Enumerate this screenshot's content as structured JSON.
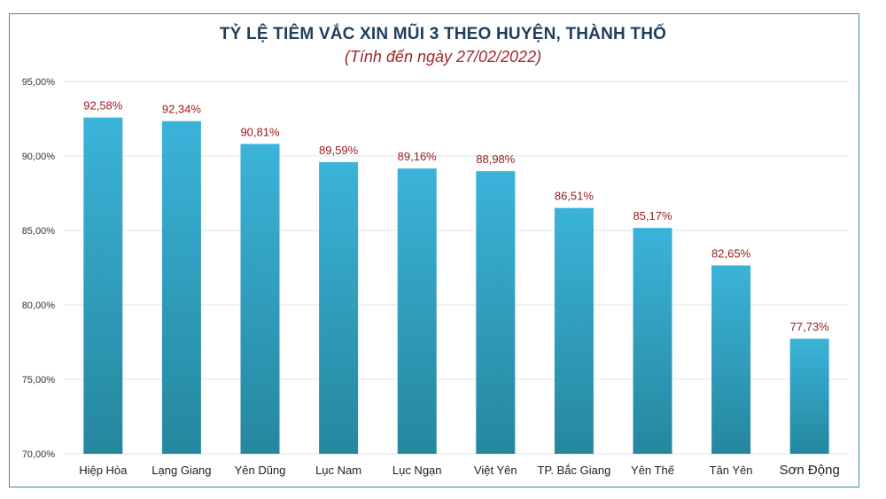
{
  "chart_data": {
    "type": "bar",
    "title": "TỶ LỆ TIÊM VẮC XIN MŨI 3 THEO HUYỆN, THÀNH THỐ",
    "subtitle": "(Tính đến ngày 27/02/2022)",
    "xlabel": "",
    "ylabel": "",
    "ylim": [
      70,
      95
    ],
    "yticks": [
      70,
      75,
      80,
      85,
      90,
      95
    ],
    "ytick_labels": [
      "70,00%",
      "75,00%",
      "80,00%",
      "85,00%",
      "90,00%",
      "95,00%"
    ],
    "grid": true,
    "categories": [
      "Hiệp Hòa",
      "Lạng Giang",
      "Yên Dũng",
      "Lục Nam",
      "Lục Ngạn",
      "Việt Yên",
      "TP. Bắc Giang",
      "Yên Thế",
      "Tân Yên",
      "Sơn Động"
    ],
    "values": [
      92.58,
      92.34,
      90.81,
      89.59,
      89.16,
      88.98,
      86.51,
      85.17,
      82.65,
      77.73
    ],
    "data_labels": [
      "92,58%",
      "92,34%",
      "90,81%",
      "89,59%",
      "89,16%",
      "88,98%",
      "86,51%",
      "85,17%",
      "82,65%",
      "77,73%"
    ]
  },
  "colors": {
    "bar_top": "#3bb3d9",
    "bar_bottom": "#25879e",
    "data_label": "#9b1c20",
    "title": "#1f3d5c",
    "subtitle": "#a3262a",
    "grid": "#dfe6ea",
    "frame": "#3a8fa8"
  }
}
